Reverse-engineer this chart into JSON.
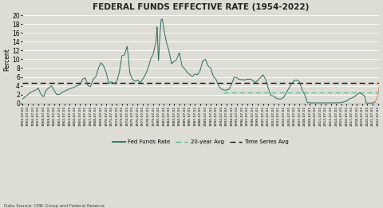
{
  "title": "FEDERAL FUNDS EFFECTIVE RATE (1954-2022)",
  "ylabel": "Percent",
  "datasource": "Data Source: CME Group and Federal Reserve",
  "time_series_avg": 4.6,
  "ylim": [
    0,
    20
  ],
  "yticks": [
    0,
    2,
    4,
    6,
    8,
    10,
    12,
    14,
    16,
    18,
    20
  ],
  "bg_color": "#ddddd5",
  "line_color": "#2d6b5e",
  "avg20_color": "#5cb88a",
  "ts_avg_color": "#111111",
  "end_color": "#d4826a",
  "key_points": [
    [
      1954.5,
      1.0
    ],
    [
      1955.0,
      1.5
    ],
    [
      1955.5,
      2.0
    ],
    [
      1956.0,
      2.5
    ],
    [
      1957.0,
      3.0
    ],
    [
      1957.5,
      3.5
    ],
    [
      1958.0,
      2.0
    ],
    [
      1958.5,
      1.5
    ],
    [
      1959.0,
      3.0
    ],
    [
      1959.5,
      3.5
    ],
    [
      1960.0,
      4.0
    ],
    [
      1960.5,
      3.0
    ],
    [
      1961.0,
      2.0
    ],
    [
      1961.5,
      2.0
    ],
    [
      1962.0,
      2.5
    ],
    [
      1963.0,
      3.0
    ],
    [
      1963.5,
      3.3
    ],
    [
      1964.0,
      3.5
    ],
    [
      1965.0,
      4.0
    ],
    [
      1965.5,
      4.3
    ],
    [
      1966.0,
      5.5
    ],
    [
      1966.5,
      5.8
    ],
    [
      1967.0,
      4.0
    ],
    [
      1967.5,
      3.8
    ],
    [
      1968.0,
      5.5
    ],
    [
      1968.5,
      6.0
    ],
    [
      1969.0,
      8.0
    ],
    [
      1969.5,
      9.2
    ],
    [
      1970.0,
      8.5
    ],
    [
      1970.5,
      7.0
    ],
    [
      1971.0,
      4.5
    ],
    [
      1971.5,
      4.9
    ],
    [
      1972.0,
      4.5
    ],
    [
      1972.5,
      4.9
    ],
    [
      1973.0,
      7.0
    ],
    [
      1973.5,
      10.8
    ],
    [
      1974.0,
      11.0
    ],
    [
      1974.5,
      13.0
    ],
    [
      1974.75,
      10.5
    ],
    [
      1975.0,
      7.0
    ],
    [
      1975.5,
      5.5
    ],
    [
      1976.0,
      5.0
    ],
    [
      1976.5,
      5.3
    ],
    [
      1977.0,
      4.7
    ],
    [
      1977.5,
      5.5
    ],
    [
      1978.0,
      6.5
    ],
    [
      1978.5,
      7.9
    ],
    [
      1979.0,
      10.0
    ],
    [
      1979.5,
      11.2
    ],
    [
      1980.0,
      13.8
    ],
    [
      1980.25,
      17.5
    ],
    [
      1980.5,
      9.5
    ],
    [
      1980.75,
      15.0
    ],
    [
      1981.0,
      19.0
    ],
    [
      1981.25,
      19.1
    ],
    [
      1981.5,
      17.0
    ],
    [
      1982.0,
      14.0
    ],
    [
      1982.5,
      12.0
    ],
    [
      1983.0,
      9.0
    ],
    [
      1983.5,
      9.5
    ],
    [
      1984.0,
      10.0
    ],
    [
      1984.5,
      11.5
    ],
    [
      1985.0,
      8.5
    ],
    [
      1985.5,
      7.9
    ],
    [
      1986.0,
      7.0
    ],
    [
      1986.5,
      6.5
    ],
    [
      1987.0,
      6.1
    ],
    [
      1987.5,
      6.7
    ],
    [
      1988.0,
      6.5
    ],
    [
      1988.5,
      7.5
    ],
    [
      1989.0,
      9.7
    ],
    [
      1989.5,
      10.0
    ],
    [
      1990.0,
      8.5
    ],
    [
      1990.5,
      8.0
    ],
    [
      1991.0,
      6.1
    ],
    [
      1991.5,
      5.5
    ],
    [
      1992.0,
      4.0
    ],
    [
      1992.5,
      3.3
    ],
    [
      1993.0,
      3.0
    ],
    [
      1993.5,
      3.0
    ],
    [
      1994.0,
      3.2
    ],
    [
      1994.5,
      4.3
    ],
    [
      1995.0,
      6.0
    ],
    [
      1995.5,
      5.8
    ],
    [
      1996.0,
      5.4
    ],
    [
      1996.5,
      5.4
    ],
    [
      1997.0,
      5.3
    ],
    [
      1997.5,
      5.5
    ],
    [
      1998.0,
      5.5
    ],
    [
      1998.5,
      5.3
    ],
    [
      1999.0,
      4.7
    ],
    [
      1999.5,
      5.2
    ],
    [
      2000.0,
      5.8
    ],
    [
      2000.5,
      6.5
    ],
    [
      2001.0,
      5.5
    ],
    [
      2001.5,
      3.5
    ],
    [
      2002.0,
      1.8
    ],
    [
      2002.5,
      1.7
    ],
    [
      2003.0,
      1.2
    ],
    [
      2003.5,
      1.0
    ],
    [
      2004.0,
      1.0
    ],
    [
      2004.5,
      1.4
    ],
    [
      2005.0,
      2.5
    ],
    [
      2005.5,
      3.5
    ],
    [
      2006.0,
      4.5
    ],
    [
      2006.5,
      5.2
    ],
    [
      2007.0,
      5.3
    ],
    [
      2007.5,
      4.9
    ],
    [
      2008.0,
      3.0
    ],
    [
      2008.5,
      2.0
    ],
    [
      2009.0,
      0.2
    ],
    [
      2009.5,
      0.12
    ],
    [
      2010.0,
      0.12
    ],
    [
      2011.0,
      0.1
    ],
    [
      2012.0,
      0.1
    ],
    [
      2013.0,
      0.1
    ],
    [
      2014.0,
      0.1
    ],
    [
      2015.0,
      0.12
    ],
    [
      2015.75,
      0.24
    ],
    [
      2016.0,
      0.4
    ],
    [
      2016.5,
      0.5
    ],
    [
      2017.0,
      1.0
    ],
    [
      2017.5,
      1.2
    ],
    [
      2018.0,
      1.5
    ],
    [
      2018.5,
      2.0
    ],
    [
      2019.0,
      2.4
    ],
    [
      2019.5,
      2.1
    ],
    [
      2020.0,
      1.6
    ],
    [
      2020.25,
      0.1
    ],
    [
      2020.5,
      0.09
    ],
    [
      2021.0,
      0.08
    ],
    [
      2021.5,
      0.08
    ],
    [
      2022.0,
      0.33
    ],
    [
      2022.4,
      1.5
    ],
    [
      2022.6,
      2.5
    ],
    [
      2022.75,
      3.8
    ]
  ],
  "split_year": 2022.0,
  "avg20_start": 1993.0,
  "avg20_end": 2022.75,
  "avg20_value": 2.5,
  "xtick_start": 1954.5,
  "xtick_end": 2023.0,
  "xtick_step": 1.0
}
